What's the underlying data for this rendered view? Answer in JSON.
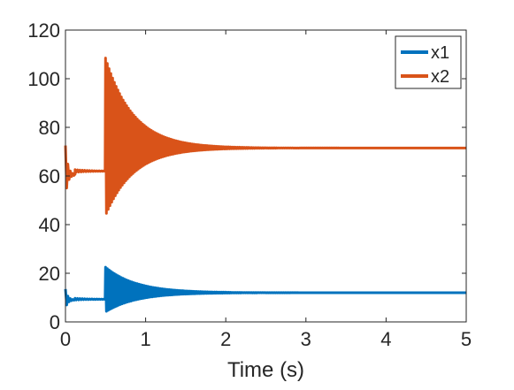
{
  "chart_data": {
    "type": "line",
    "title": "",
    "xlabel": "Time (s)",
    "ylabel": "",
    "xlim": [
      0,
      5
    ],
    "ylim": [
      0,
      120
    ],
    "xticks": [
      0,
      1,
      2,
      3,
      4,
      5
    ],
    "yticks": [
      0,
      20,
      40,
      60,
      80,
      100,
      120
    ],
    "grid": false,
    "legend_position": "top-right",
    "series": [
      {
        "name": "x1",
        "color": "#0072BD",
        "segments": [
          {
            "t0": 0.0,
            "t1": 0.12,
            "center": 9.0,
            "amplitude": 4.5,
            "decay": 0.03
          },
          {
            "t0": 0.12,
            "t1": 0.5,
            "center": 9.3,
            "amplitude": 0.4,
            "decay": 0.2
          },
          {
            "t0": 0.5,
            "t1": 5.0,
            "center": 12.0,
            "amplitude": 10.5,
            "decay": 0.38,
            "period": 0.022
          }
        ],
        "steady_state": 12.0,
        "peak": 22.5,
        "trough": 1.5
      },
      {
        "name": "x2",
        "color": "#D95319",
        "segments": [
          {
            "t0": 0.0,
            "t1": 0.12,
            "center": 60.5,
            "amplitude": 12.0,
            "decay": 0.03
          },
          {
            "t0": 0.12,
            "t1": 0.5,
            "center": 62.0,
            "amplitude": 0.6,
            "decay": 0.2
          },
          {
            "t0": 0.5,
            "t1": 5.0,
            "center": 71.5,
            "amplitude": 37.0,
            "decay": 0.35,
            "period": 0.022
          }
        ],
        "steady_state": 71.5,
        "peak": 109.5,
        "trough": 48.0
      }
    ]
  }
}
